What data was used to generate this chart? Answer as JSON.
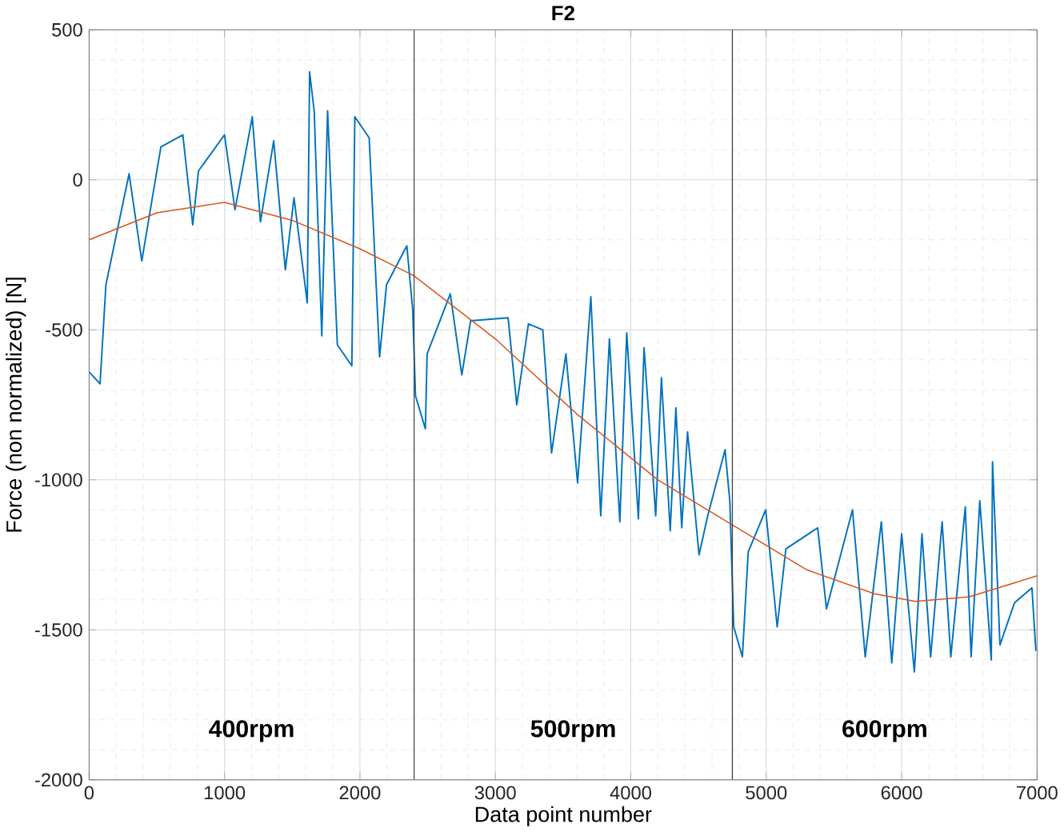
{
  "chart_data": {
    "type": "line",
    "title": "F2",
    "xlabel": "Data point number",
    "ylabel": "Force (non normalized) [N]",
    "xlim": [
      0,
      7000
    ],
    "ylim": [
      -2000,
      500
    ],
    "xticks": [
      0,
      1000,
      2000,
      3000,
      4000,
      5000,
      6000,
      7000
    ],
    "yticks": [
      -2000,
      -1500,
      -1000,
      -500,
      0,
      500
    ],
    "grid": true,
    "series": [
      {
        "color": "#0072bd",
        "x": [
          0,
          81,
          124,
          295,
          389,
          530,
          692,
          765,
          808,
          1000,
          1077,
          1205,
          1265,
          1363,
          1449,
          1513,
          1611,
          1628,
          1662,
          1718,
          1761,
          1833,
          1940,
          1962,
          2068,
          2145,
          2196,
          2346,
          2389,
          2410,
          2483,
          2496,
          2667,
          2752,
          2817,
          3094,
          3158,
          3244,
          3350,
          3415,
          3521,
          3607,
          3705,
          3778,
          3842,
          3919,
          3970,
          4056,
          4098,
          4184,
          4226,
          4291,
          4333,
          4376,
          4419,
          4504,
          4568,
          4696,
          4731,
          4760,
          4824,
          4867,
          4996,
          5081,
          5145,
          5380,
          5445,
          5637,
          5731,
          5850,
          5927,
          6000,
          6094,
          6150,
          6214,
          6299,
          6363,
          6470,
          6513,
          6577,
          6662,
          6671,
          6726,
          6833,
          6962,
          6991
        ],
        "values": [
          -640,
          -680,
          -350,
          20,
          -270,
          110,
          150,
          -150,
          30,
          150,
          -100,
          210,
          -140,
          130,
          -300,
          -60,
          -410,
          360,
          230,
          -520,
          230,
          -550,
          -620,
          210,
          140,
          -590,
          -350,
          -220,
          -430,
          -720,
          -830,
          -580,
          -380,
          -650,
          -470,
          -460,
          -750,
          -480,
          -500,
          -910,
          -580,
          -1010,
          -390,
          -1120,
          -530,
          -1140,
          -510,
          -1130,
          -560,
          -1120,
          -660,
          -1170,
          -760,
          -1160,
          -840,
          -1250,
          -1120,
          -900,
          -1070,
          -1490,
          -1590,
          -1240,
          -1100,
          -1490,
          -1230,
          -1160,
          -1430,
          -1100,
          -1590,
          -1140,
          -1610,
          -1180,
          -1640,
          -1180,
          -1590,
          -1140,
          -1590,
          -1090,
          -1590,
          -1070,
          -1600,
          -940,
          -1550,
          -1410,
          -1360,
          -1570
        ]
      },
      {
        "color": "#d95319",
        "x": [
          0,
          500,
          1000,
          1500,
          2000,
          2400,
          3000,
          3600,
          4200,
          4750,
          5300,
          5800,
          6100,
          6500,
          7000
        ],
        "values": [
          -200,
          -110,
          -75,
          -135,
          -230,
          -320,
          -530,
          -780,
          -1000,
          -1150,
          -1300,
          -1380,
          -1405,
          -1390,
          -1320
        ]
      }
    ],
    "ref_lines": [
      {
        "axis": "x",
        "value": 2400,
        "color": "#404040"
      },
      {
        "axis": "x",
        "value": 4750,
        "color": "#404040"
      }
    ],
    "annotations": [
      "**400rpm**",
      "**500rpm**",
      "**600rpm**"
    ]
  }
}
